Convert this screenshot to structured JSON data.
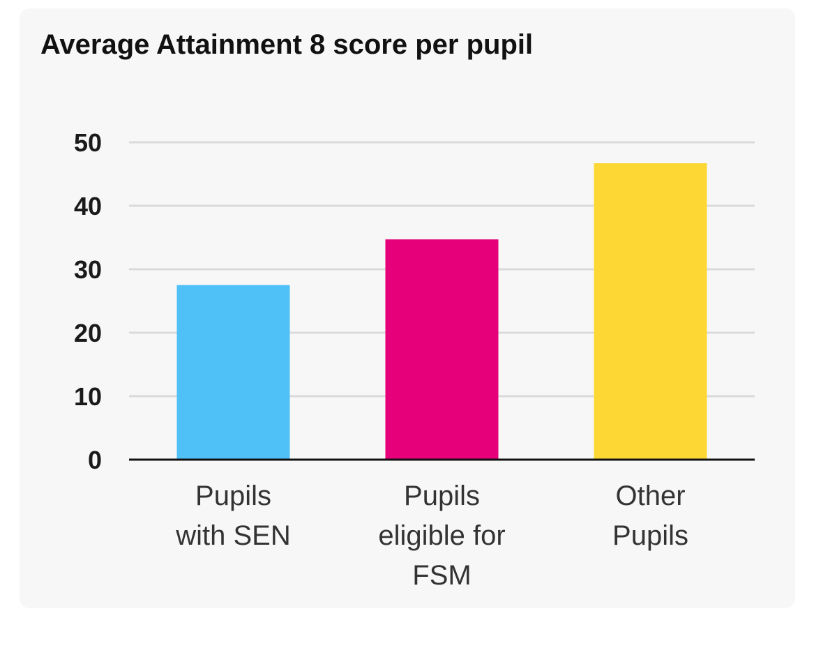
{
  "chart_data": {
    "type": "bar",
    "title": "Average Attainment 8 score per pupil",
    "categories": [
      "Pupils with SEN",
      "Pupils eligible for FSM",
      "Other Pupils"
    ],
    "category_lines": [
      [
        "Pupils",
        "with SEN"
      ],
      [
        "Pupils",
        "eligible for",
        "FSM"
      ],
      [
        "Other",
        "Pupils"
      ]
    ],
    "values": [
      27.5,
      34.7,
      46.7
    ],
    "colors": [
      "#4fc1f7",
      "#e6007a",
      "#fdd835"
    ],
    "ylim": [
      0,
      50
    ],
    "yticks": [
      0,
      10,
      20,
      30,
      40,
      50
    ],
    "xlabel": "",
    "ylabel": "",
    "grid": true,
    "legend": "none"
  }
}
